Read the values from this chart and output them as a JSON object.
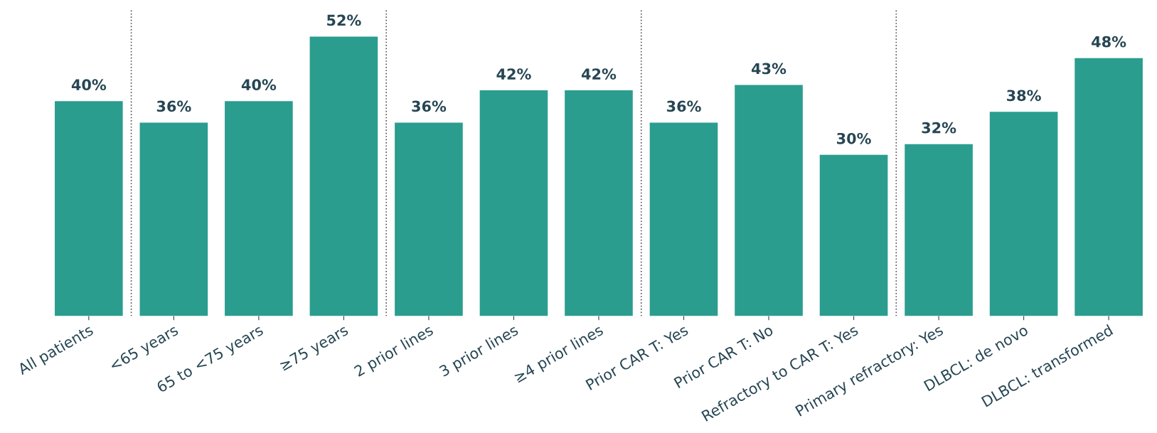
{
  "chart_data": {
    "type": "bar",
    "categories": [
      "All patients",
      "<65 years",
      "65 to <75 years",
      "≥75 years",
      "2 prior lines",
      "3 prior lines",
      "≥4 prior lines",
      "Prior CAR T: Yes",
      "Prior CAR T: No",
      "Refractory to CAR T: Yes",
      "Primary refractory: Yes",
      "DLBCL: de novo",
      "DLBCL: transformed"
    ],
    "values": [
      40,
      36,
      40,
      52,
      36,
      42,
      42,
      36,
      43,
      30,
      32,
      38,
      48
    ],
    "value_labels": [
      "40%",
      "36%",
      "40%",
      "52%",
      "36%",
      "42%",
      "42%",
      "36%",
      "43%",
      "30%",
      "32%",
      "38%",
      "48%"
    ],
    "color": "#2a9d8f",
    "tick_labels": "x",
    "grid": false,
    "legend": false
  }
}
